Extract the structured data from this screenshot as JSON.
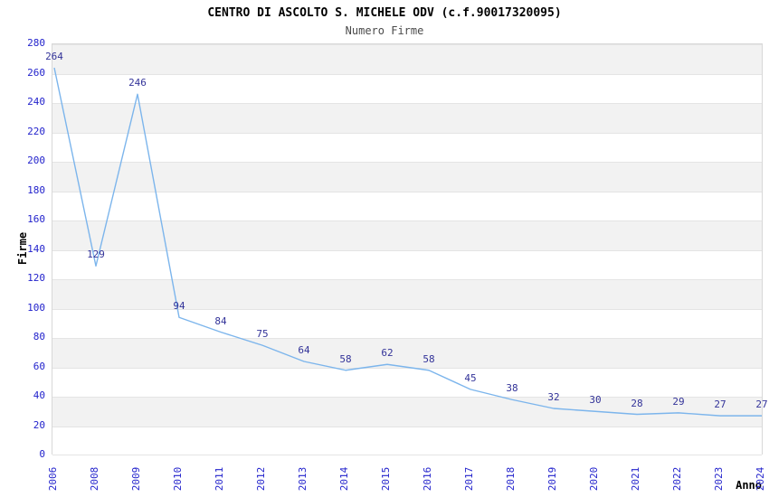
{
  "page": {
    "background": "#ffffff"
  },
  "chart_data": {
    "type": "line",
    "title": "CENTRO DI ASCOLTO S. MICHELE ODV (c.f.90017320095)",
    "subtitle": "Numero Firme",
    "xlabel": "Anno",
    "ylabel": "Firme",
    "categories": [
      "2006",
      "2008",
      "2009",
      "2010",
      "2011",
      "2012",
      "2013",
      "2014",
      "2015",
      "2016",
      "2017",
      "2018",
      "2019",
      "2020",
      "2021",
      "2022",
      "2023",
      "2024"
    ],
    "series": [
      {
        "name": "Numero Firme",
        "values": [
          264,
          129,
          246,
          94,
          84,
          75,
          64,
          58,
          62,
          58,
          45,
          38,
          32,
          30,
          28,
          29,
          27,
          27
        ]
      }
    ],
    "ylim": [
      0,
      280
    ],
    "ytick_step": 20,
    "grid": "horizontal-alternating-bands",
    "legend_position": "none",
    "markers": "none",
    "data_labels": "above-points",
    "colors": {
      "line": "#7cb5ec",
      "tick_label": "#2323cc",
      "data_label": "#333399",
      "band_gray": "#f2f2f2",
      "band_white": "#ffffff",
      "grid_line": "#e4e4e4",
      "plot_border": "#d8d8d8",
      "title": "#000000",
      "subtitle": "#4a4a4a",
      "axis_title": "#000000"
    }
  }
}
